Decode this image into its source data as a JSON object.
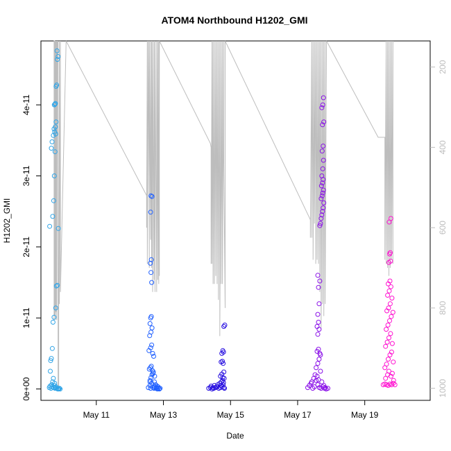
{
  "chart_data": {
    "type": "scatter",
    "title": "ATOM4 Northbound H1202_GMI",
    "xlabel": "Date",
    "ylabel": "H1202_GMI",
    "x_unit": "date (2016 May, days)",
    "xlim": [
      9.35,
      20.95
    ],
    "ylim": [
      -1.6e-12,
      4.9e-11
    ],
    "x_ticks": [
      11,
      13,
      15,
      17,
      19
    ],
    "x_tick_labels": [
      "May 11",
      "May 13",
      "May 15",
      "May 17",
      "May 19"
    ],
    "y_ticks": [
      0,
      1e-11,
      2e-11,
      3e-11,
      4e-11
    ],
    "y_tick_labels": [
      "0e+00",
      "1e-11",
      "2e-11",
      "3e-11",
      "4e-11"
    ],
    "y2_ticks": [
      200,
      400,
      600,
      800,
      1000
    ],
    "y2_tick_labels": [
      "200",
      "400",
      "600",
      "800",
      "1000"
    ],
    "y2lim": [
      1030,
      135
    ],
    "y2_reversed": true,
    "grid": false,
    "legend": "none",
    "colors": {
      "group1": "#2fa4e7",
      "group2": "#1f5fff",
      "group3": "#2a12e0",
      "group4": "#8a10e8",
      "group5": "#ff10d0",
      "altitude_line": "#bdbdbd",
      "axis": "#000000",
      "right_axis": "#bdbdbd"
    },
    "series": [
      {
        "marker": "open-circle",
        "color_key": "group1",
        "x": [
          9.6,
          9.62,
          9.65,
          9.67,
          9.68,
          9.7,
          9.72,
          9.73,
          9.75,
          9.76,
          9.77,
          9.78,
          9.8,
          9.82,
          9.85,
          9.86,
          9.88,
          9.9,
          9.92,
          9.63,
          9.64,
          9.66,
          9.69,
          9.71,
          9.74,
          9.79,
          9.81,
          9.84,
          9.87,
          9.61,
          9.7,
          9.73,
          9.75,
          9.77,
          9.66,
          9.68,
          9.72,
          9.76,
          9.74,
          9.78,
          9.8
        ],
        "y": [
          2e-13,
          4e-13,
          1e-13,
          6e-13,
          3e-13,
          1e-12,
          1.5e-12,
          2e-13,
          5e-13,
          8e-13,
          1e-13,
          2e-13,
          3e-13,
          1e-13,
          0,
          0,
          0,
          1e-13,
          0,
          2.5e-12,
          4e-12,
          4.3e-12,
          5.7e-12,
          9.4e-12,
          1.01e-11,
          1.14e-11,
          1.45e-11,
          1.46e-11,
          2.26e-11,
          2.29e-11,
          2.43e-11,
          2.65e-11,
          3e-11,
          3.34e-11,
          3.39e-11,
          3.48e-11,
          3.57e-11,
          3.62e-11,
          3.66e-11,
          3.69e-11,
          3.76e-11
        ]
      },
      {
        "marker": "open-circle",
        "color_key": "group1",
        "x": [
          9.75,
          9.78,
          9.8,
          9.82,
          9.84,
          9.86,
          9.83,
          9.77,
          9.79
        ],
        "y": [
          4e-11,
          4.02e-11,
          4.26e-11,
          4.28e-11,
          4.64e-11,
          4.68e-11,
          4.76e-11,
          4.01e-11,
          3.59e-11
        ]
      },
      {
        "marker": "open-circle",
        "color_key": "group2",
        "x": [
          12.55,
          12.6,
          12.62,
          12.65,
          12.7,
          12.72,
          12.75,
          12.78,
          12.8,
          12.82,
          12.85,
          12.88,
          12.9,
          12.6,
          12.63,
          12.66,
          12.7,
          12.74,
          12.58,
          12.61,
          12.64,
          12.67,
          12.69,
          12.73,
          12.77,
          12.81,
          12.84,
          12.57,
          12.62,
          12.65,
          12.68,
          12.71,
          12.59,
          12.63,
          12.66,
          12.6,
          12.64,
          12.62,
          12.65,
          12.63,
          12.61,
          12.64,
          12.62,
          12.66,
          12.63,
          12.6
        ],
        "y": [
          2e-13,
          5e-13,
          1e-13,
          8e-13,
          2e-13,
          1e-13,
          3e-13,
          1e-13,
          2e-13,
          0,
          1e-13,
          0,
          1e-13,
          1.2e-12,
          1.6e-12,
          2e-12,
          2.4e-12,
          1.8e-12,
          2.8e-12,
          3e-12,
          3.2e-12,
          2.6e-12,
          2.2e-12,
          1e-12,
          6e-13,
          4e-13,
          3e-13,
          5.4e-12,
          5.8e-12,
          6.2e-12,
          5e-12,
          4.6e-12,
          7.5e-12,
          8e-12,
          8.6e-12,
          9.2e-12,
          1.02e-11,
          1e-11,
          1.5e-11,
          1.64e-11,
          1.77e-11,
          1.82e-11,
          2.49e-11,
          2.71e-11,
          2.72e-11,
          1e-12
        ]
      },
      {
        "marker": "open-circle",
        "color_key": "group3",
        "x": [
          14.35,
          14.4,
          14.45,
          14.5,
          14.55,
          14.6,
          14.65,
          14.7,
          14.72,
          14.75,
          14.78,
          14.8,
          14.82,
          14.42,
          14.48,
          14.52,
          14.58,
          14.62,
          14.68,
          14.73,
          14.76,
          14.79,
          14.81,
          14.7,
          14.74,
          14.77,
          14.8,
          14.72,
          14.76,
          14.78,
          14.74,
          14.77,
          14.79,
          14.8,
          14.83
        ],
        "y": [
          1e-13,
          2e-13,
          0,
          1e-13,
          2e-13,
          3e-13,
          1e-13,
          2e-13,
          5e-13,
          3e-13,
          6e-13,
          2e-13,
          1e-13,
          4e-13,
          2e-13,
          5e-13,
          3e-13,
          6e-13,
          8e-13,
          1e-12,
          1.2e-12,
          9e-13,
          1.5e-12,
          1.8e-12,
          2.1e-12,
          1.6e-12,
          2.4e-12,
          3.8e-12,
          3.9e-12,
          3.6e-12,
          5e-12,
          5.4e-12,
          5.2e-12,
          8.8e-12,
          9e-12
        ]
      },
      {
        "marker": "open-circle",
        "color_key": "group4",
        "x": [
          17.3,
          17.35,
          17.4,
          17.45,
          17.5,
          17.55,
          17.6,
          17.65,
          17.7,
          17.75,
          17.8,
          17.85,
          17.9,
          17.42,
          17.48,
          17.52,
          17.58,
          17.62,
          17.68,
          17.72,
          17.78,
          17.82,
          17.55,
          17.6,
          17.64,
          17.68,
          17.58,
          17.62,
          17.66,
          17.6,
          17.64,
          17.58,
          17.62,
          17.6,
          17.64,
          17.62,
          17.66,
          17.6
        ],
        "y": [
          2e-13,
          5e-13,
          8e-13,
          1e-13,
          3e-13,
          1.2e-12,
          6e-13,
          2e-13,
          1e-13,
          3e-13,
          1e-13,
          0,
          1e-13,
          1e-12,
          1.5e-12,
          2e-12,
          1.8e-12,
          1.3e-12,
          2.5e-12,
          1e-12,
          5e-13,
          2e-13,
          3e-12,
          3.6e-12,
          4.2e-12,
          4.8e-12,
          5.3e-12,
          5.6e-12,
          5e-12,
          7.7e-12,
          8.4e-12,
          8.8e-12,
          9.4e-12,
          1.05e-11,
          1.2e-11,
          1.43e-11,
          1.52e-11,
          1.6e-11
        ]
      },
      {
        "marker": "open-circle",
        "color_key": "group4",
        "x": [
          17.66,
          17.68,
          17.7,
          17.72,
          17.74,
          17.76,
          17.78,
          17.7,
          17.73,
          17.75,
          17.77,
          17.71,
          17.74,
          17.76,
          17.72,
          17.75,
          17.77,
          17.73,
          17.76,
          17.74,
          17.78,
          17.72,
          17.75,
          17.77
        ],
        "y": [
          2.3e-11,
          2.33e-11,
          2.4e-11,
          2.45e-11,
          2.5e-11,
          2.55e-11,
          2.62e-11,
          2.68e-11,
          2.72e-11,
          2.76e-11,
          2.8e-11,
          2.86e-11,
          2.9e-11,
          2.95e-11,
          3e-11,
          3.1e-11,
          3.22e-11,
          3.35e-11,
          3.42e-11,
          3.72e-11,
          3.76e-11,
          3.96e-11,
          4e-11,
          4.1e-11
        ]
      },
      {
        "marker": "open-circle",
        "color_key": "group5",
        "x": [
          19.55,
          19.6,
          19.65,
          19.7,
          19.75,
          19.8,
          19.85,
          19.9,
          19.62,
          19.68,
          19.72,
          19.78,
          19.82,
          19.86,
          19.6,
          19.65,
          19.7,
          19.75,
          19.8,
          19.85,
          19.62,
          19.67,
          19.72,
          19.77,
          19.82,
          19.64,
          19.69,
          19.74,
          19.79,
          19.84,
          19.66,
          19.71,
          19.76,
          19.81,
          19.68,
          19.73,
          19.78,
          19.7,
          19.75,
          19.72,
          19.77,
          19.74,
          19.76,
          19.73,
          19.78
        ],
        "y": [
          6e-13,
          7e-13,
          6e-13,
          5e-13,
          7e-13,
          6e-13,
          8e-13,
          6e-13,
          1.5e-12,
          2e-12,
          2.5e-12,
          1.8e-12,
          2.2e-12,
          1.2e-12,
          3e-12,
          3.5e-12,
          4.2e-12,
          4.8e-12,
          5.2e-12,
          3.8e-12,
          6e-12,
          6.6e-12,
          7.2e-12,
          7.8e-12,
          6.4e-12,
          8.4e-12,
          9e-12,
          9.6e-12,
          1.02e-11,
          1.08e-11,
          1.1e-11,
          1.14e-11,
          1.2e-11,
          1.28e-11,
          1.32e-11,
          1.38e-11,
          1.44e-11,
          1.48e-11,
          1.52e-11,
          1.78e-11,
          1.8e-11,
          1.9e-11,
          1.92e-11,
          2.35e-11,
          2.4e-11
        ]
      }
    ],
    "altitude_series": {
      "axis": "right",
      "color_key": "altitude_line",
      "x": [
        9.72,
        9.74,
        9.74,
        9.76,
        9.76,
        9.78,
        9.78,
        9.8,
        9.8,
        9.82,
        9.82,
        9.84,
        9.84,
        9.86,
        9.86,
        9.88,
        9.88,
        9.9,
        9.9,
        9.93,
        9.93,
        10.1,
        12.5,
        12.5,
        12.52,
        12.52,
        12.55,
        12.55,
        12.58,
        12.58,
        12.62,
        12.62,
        12.65,
        12.65,
        12.68,
        12.68,
        12.72,
        12.72,
        12.75,
        12.75,
        12.8,
        12.8,
        12.83,
        12.83,
        12.86,
        12.86,
        12.88,
        12.88,
        14.4,
        14.42,
        14.42,
        14.45,
        14.45,
        14.48,
        14.48,
        14.52,
        14.52,
        14.56,
        14.56,
        14.6,
        14.6,
        14.64,
        14.64,
        14.68,
        14.68,
        14.72,
        14.72,
        14.76,
        14.76,
        14.8,
        14.8,
        14.84,
        14.84,
        17.35,
        17.38,
        17.38,
        17.42,
        17.42,
        17.46,
        17.46,
        17.5,
        17.5,
        17.54,
        17.54,
        17.58,
        17.58,
        17.62,
        17.62,
        17.66,
        17.66,
        17.7,
        17.7,
        17.74,
        17.74,
        17.78,
        17.78,
        17.82,
        17.82,
        17.86,
        17.86,
        19.4,
        19.6,
        19.6,
        19.64,
        19.64,
        19.68,
        19.68,
        19.72,
        19.72,
        19.76,
        19.76,
        19.8,
        19.8,
        19.84,
        19.84
      ],
      "y": [
        830,
        830,
        135,
        135,
        820,
        135,
        830,
        135,
        810,
        135,
        830,
        135,
        150,
        135,
        1000,
        1000,
        800,
        135,
        790,
        135,
        760,
        135,
        520,
        600,
        135,
        690,
        135,
        135,
        700,
        135,
        630,
        135,
        700,
        135,
        760,
        135,
        730,
        135,
        760,
        135,
        760,
        135,
        730,
        135,
        740,
        135,
        720,
        135,
        390,
        400,
        690,
        135,
        690,
        135,
        740,
        135,
        740,
        135,
        720,
        135,
        740,
        135,
        780,
        135,
        870,
        135,
        740,
        135,
        740,
        135,
        440,
        800,
        135,
        575,
        580,
        625,
        135,
        625,
        135,
        680,
        135,
        590,
        135,
        690,
        135,
        680,
        135,
        690,
        135,
        760,
        135,
        850,
        135,
        790,
        135,
        820,
        135,
        790,
        135,
        135,
        375,
        375,
        680,
        135,
        690,
        135,
        700,
        135,
        720,
        135,
        700,
        135,
        680,
        135,
        690
      ]
    }
  }
}
